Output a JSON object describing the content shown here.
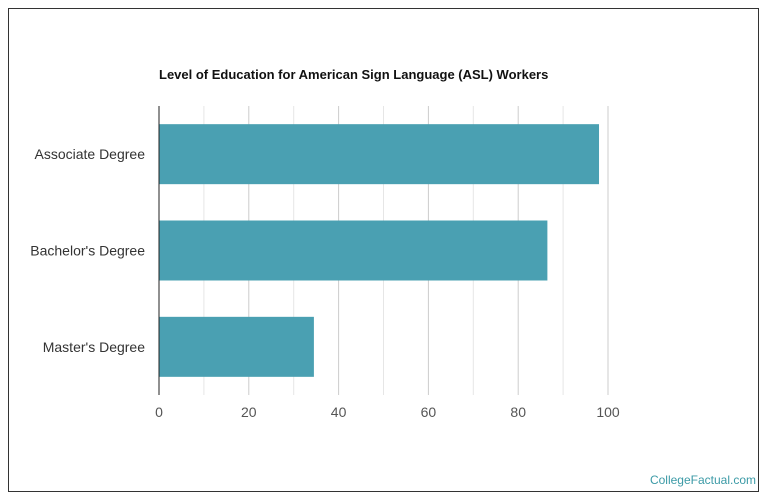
{
  "chart_data": {
    "type": "bar",
    "orientation": "horizontal",
    "title": "Level of Education for American Sign Language (ASL) Workers",
    "categories": [
      "Associate Degree",
      "Bachelor's Degree",
      "Master's Degree"
    ],
    "values": [
      98,
      86.5,
      34.5
    ],
    "xlim": [
      0,
      100
    ],
    "xticks": [
      0,
      20,
      40,
      60,
      80,
      100
    ],
    "grid": true,
    "bar_color": "#4aa0b2"
  },
  "watermark": "CollegeFactual.com"
}
